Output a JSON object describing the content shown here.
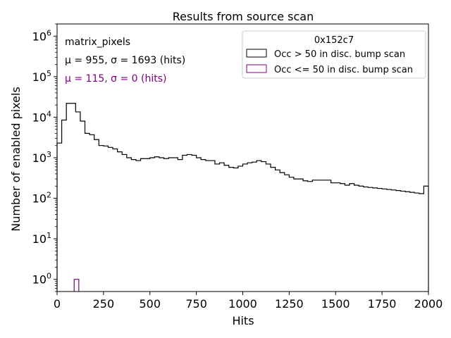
{
  "chart_data": {
    "type": "histogram",
    "title": "Results from source scan",
    "xlabel": "Hits",
    "ylabel": "Number of enabled pixels",
    "xlim": [
      0,
      2000
    ],
    "ylim": [
      0.5,
      2000000
    ],
    "yscale": "log",
    "grid": false,
    "x_ticks": [
      0,
      250,
      500,
      750,
      1000,
      1250,
      1500,
      1750,
      2000
    ],
    "x_tick_labels": [
      "0",
      "250",
      "500",
      "750",
      "1000",
      "1250",
      "1500",
      "1750",
      "2000"
    ],
    "y_ticks": [
      1,
      10,
      100,
      1000,
      10000,
      100000,
      1000000
    ],
    "y_tick_labels": [
      {
        "base": "10",
        "exp": "0"
      },
      {
        "base": "10",
        "exp": "1"
      },
      {
        "base": "10",
        "exp": "2"
      },
      {
        "base": "10",
        "exp": "3"
      },
      {
        "base": "10",
        "exp": "4"
      },
      {
        "base": "10",
        "exp": "5"
      },
      {
        "base": "10",
        "exp": "6"
      }
    ],
    "bin_width": 25,
    "annotations": [
      {
        "text": "matrix_pixels",
        "color": "#000000"
      },
      {
        "text": "μ = 955, σ = 1693 (hits)",
        "color": "#000000"
      },
      {
        "text": "μ = 115, σ = 0 (hits)",
        "color": "#800080"
      }
    ],
    "legend": {
      "title": "0x152c7",
      "placement": "upper right"
    },
    "series": [
      {
        "name": "Occ > 50 in disc. bump scan",
        "color": "#000000",
        "bin_start": 0,
        "values": [
          2300,
          8500,
          22000,
          22000,
          13500,
          8000,
          4000,
          3700,
          2800,
          2000,
          1950,
          1800,
          1650,
          1400,
          1200,
          1000,
          900,
          850,
          950,
          950,
          1000,
          1050,
          1000,
          950,
          1000,
          1000,
          900,
          1150,
          1200,
          1150,
          1000,
          900,
          850,
          850,
          700,
          750,
          650,
          580,
          560,
          620,
          700,
          750,
          780,
          850,
          800,
          700,
          580,
          500,
          430,
          380,
          330,
          300,
          300,
          270,
          260,
          280,
          280,
          280,
          280,
          240,
          240,
          230,
          210,
          230,
          210,
          200,
          190,
          185,
          180,
          175,
          170,
          165,
          160,
          155,
          150,
          145,
          140,
          135,
          130,
          200
        ]
      },
      {
        "name": "Occ <= 50 in disc. bump scan",
        "color": "#800080",
        "bin_start": 92,
        "bin_width": 25,
        "values": [
          1
        ]
      }
    ]
  }
}
